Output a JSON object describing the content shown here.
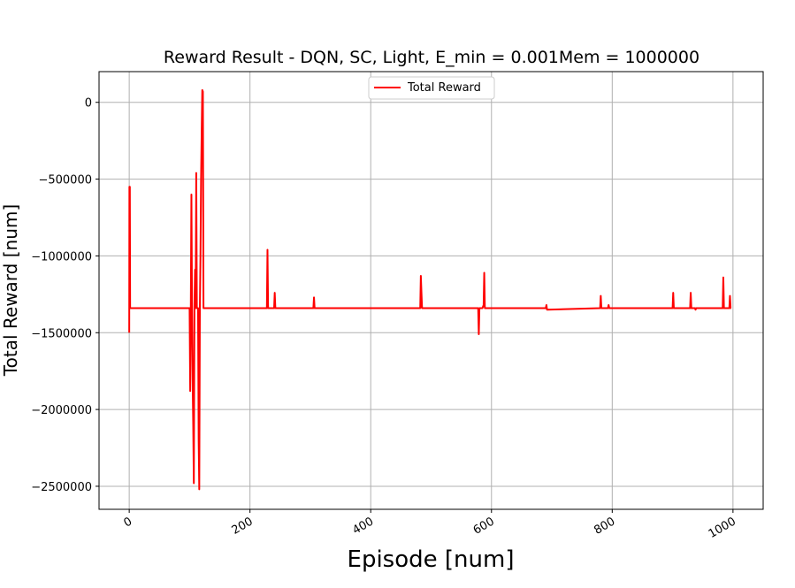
{
  "chart_data": {
    "type": "line",
    "title": "Reward Result - DQN, SC, Light, E_min = 0.001Mem =  1000000",
    "xlabel": "Episode [num]",
    "ylabel": "Total Reward [num]",
    "xlim": [
      -50,
      1050
    ],
    "ylim": [
      -2650000,
      200000
    ],
    "x_ticks": [
      0,
      200,
      400,
      600,
      800,
      1000
    ],
    "y_ticks": [
      0,
      -500000,
      -1000000,
      -1500000,
      -2000000,
      -2500000
    ],
    "x_tick_labels": [
      "0",
      "200",
      "400",
      "600",
      "800",
      "1000"
    ],
    "y_tick_labels": [
      "0",
      "−500000",
      "−1000000",
      "−1500000",
      "−2000000",
      "−2500000"
    ],
    "grid": true,
    "legend_position": "top-center",
    "color": "#ff0000",
    "series": [
      {
        "name": "Total Reward",
        "x": [
          0,
          0.3,
          0.6,
          1,
          1.5,
          2,
          3,
          100,
          101,
          102,
          103,
          104,
          105,
          106,
          107,
          108,
          109,
          110,
          111,
          112,
          113,
          114,
          115,
          116,
          117,
          118,
          119,
          120,
          121,
          122,
          123,
          124,
          125,
          126,
          127,
          128,
          129,
          130,
          228,
          229,
          230,
          231,
          232,
          240,
          241,
          242,
          243,
          305,
          306,
          307,
          482,
          483,
          484,
          485,
          578,
          579,
          580,
          581,
          582,
          583,
          585,
          587,
          588,
          589,
          590,
          591,
          690,
          691,
          692,
          780,
          781,
          782,
          783,
          793,
          794,
          795,
          900,
          901,
          902,
          903,
          929,
          930,
          931,
          932,
          937,
          938,
          939,
          983,
          984,
          985,
          986,
          994,
          995,
          996,
          997
        ],
        "y": [
          -1500000,
          -550000,
          -850000,
          -550000,
          -1340000,
          -1340000,
          -1340000,
          -1340000,
          -1880000,
          -1340000,
          -600000,
          -1340000,
          -1800000,
          -2100000,
          -2480000,
          -1340000,
          -1090000,
          -1340000,
          -460000,
          -1340000,
          -1340000,
          -1340000,
          -2200000,
          -2520000,
          -1340000,
          -1000000,
          -500000,
          -200000,
          80000,
          70000,
          -1340000,
          -1340000,
          -1340000,
          -1340000,
          -1340000,
          -1340000,
          -1340000,
          -1340000,
          -1340000,
          -960000,
          -1340000,
          -1340000,
          -1340000,
          -1340000,
          -1240000,
          -1340000,
          -1340000,
          -1340000,
          -1270000,
          -1340000,
          -1340000,
          -1130000,
          -1240000,
          -1340000,
          -1340000,
          -1510000,
          -1340000,
          -1340000,
          -1340000,
          -1340000,
          -1340000,
          -1320000,
          -1110000,
          -1340000,
          -1340000,
          -1340000,
          -1340000,
          -1320000,
          -1350000,
          -1340000,
          -1260000,
          -1340000,
          -1340000,
          -1340000,
          -1320000,
          -1340000,
          -1340000,
          -1240000,
          -1340000,
          -1340000,
          -1340000,
          -1240000,
          -1340000,
          -1340000,
          -1340000,
          -1350000,
          -1340000,
          -1340000,
          -1140000,
          -1340000,
          -1340000,
          -1340000,
          -1260000,
          -1340000,
          -1340000
        ]
      }
    ]
  }
}
